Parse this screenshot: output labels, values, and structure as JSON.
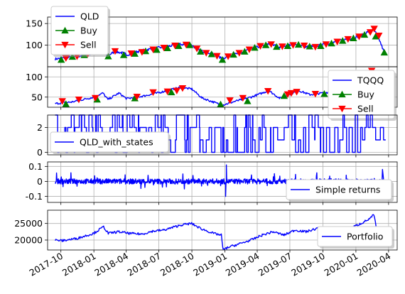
{
  "colors": {
    "line": "#0000ff",
    "buy": "#008000",
    "sell": "#ff0000",
    "grid": "#b0b0b0"
  },
  "chart_data": [
    {
      "type": "line",
      "ylim": [
        50,
        165
      ],
      "yticks": [
        100,
        150
      ],
      "legend": "top-left",
      "grid": true,
      "legend_labels": [
        "QLD",
        "Buy",
        "Sell"
      ],
      "series": [
        {
          "name": "QLD",
          "x": [
            "2017-09-15",
            "2017-10-15",
            "2017-11-15",
            "2017-12-15",
            "2018-01-15",
            "2018-02-08",
            "2018-03-01",
            "2018-03-20",
            "2018-04-05",
            "2018-05-01",
            "2018-06-01",
            "2018-07-01",
            "2018-08-01",
            "2018-08-30",
            "2018-09-30",
            "2018-10-25",
            "2018-11-20",
            "2018-12-24",
            "2019-01-15",
            "2019-02-15",
            "2019-03-15",
            "2019-04-15",
            "2019-05-03",
            "2019-06-03",
            "2019-07-01",
            "2019-08-01",
            "2019-08-15",
            "2019-09-15",
            "2019-10-15",
            "2019-11-15",
            "2019-12-15",
            "2020-01-15",
            "2020-02-19",
            "2020-03-05",
            "2020-03-20"
          ],
          "y": [
            68,
            71,
            74,
            78,
            88,
            76,
            85,
            82,
            78,
            85,
            90,
            94,
            98,
            102,
            100,
            87,
            82,
            69,
            76,
            82,
            92,
            98,
            103,
            96,
            101,
            100,
            96,
            98,
            103,
            110,
            115,
            122,
            138,
            115,
            83
          ]
        },
        {
          "name": "Buy",
          "x": [
            "2017-10-02",
            "2017-11-02",
            "2017-12-05",
            "2018-01-05",
            "2018-02-10",
            "2018-03-25",
            "2018-04-25",
            "2018-05-25",
            "2018-06-25",
            "2018-07-25",
            "2018-08-25",
            "2018-09-25",
            "2018-10-25",
            "2018-11-25",
            "2018-12-25",
            "2019-01-25",
            "2019-02-25",
            "2019-03-25",
            "2019-04-25",
            "2019-05-25",
            "2019-06-25",
            "2019-07-25",
            "2019-08-25",
            "2019-09-25",
            "2019-10-25",
            "2019-11-25",
            "2019-12-25",
            "2020-01-25",
            "2020-02-25",
            "2020-03-20"
          ],
          "y": [
            66,
            73,
            77,
            84,
            74,
            77,
            80,
            86,
            89,
            93,
            98,
            100,
            85,
            79,
            66,
            78,
            85,
            94,
            100,
            96,
            98,
            101,
            97,
            98,
            104,
            110,
            116,
            124,
            120,
            83
          ]
        },
        {
          "name": "Sell",
          "x": [
            "2017-10-15",
            "2017-11-15",
            "2017-12-15",
            "2018-01-20",
            "2018-03-01",
            "2018-04-15",
            "2018-05-15",
            "2018-06-15",
            "2018-07-15",
            "2018-08-15",
            "2018-09-15",
            "2018-10-15",
            "2018-11-10",
            "2018-12-10",
            "2019-01-10",
            "2019-02-10",
            "2019-03-10",
            "2019-04-10",
            "2019-05-10",
            "2019-06-10",
            "2019-07-10",
            "2019-08-10",
            "2019-09-10",
            "2019-10-10",
            "2019-11-10",
            "2019-12-10",
            "2020-01-10",
            "2020-02-10",
            "2020-02-21",
            "2020-03-05"
          ],
          "y": [
            70,
            74,
            80,
            88,
            86,
            81,
            84,
            90,
            94,
            99,
            101,
            92,
            82,
            75,
            74,
            82,
            90,
            98,
            102,
            97,
            100,
            99,
            96,
            102,
            108,
            114,
            120,
            130,
            138,
            122
          ]
        }
      ]
    },
    {
      "type": "line",
      "ylim": [
        25,
        125
      ],
      "yticks": [
        50,
        100
      ],
      "legend": "right",
      "grid": true,
      "legend_labels": [
        "TQQQ",
        "Buy",
        "Sell"
      ],
      "series": [
        {
          "name": "TQQQ",
          "x": [
            "2017-09-15",
            "2017-11-01",
            "2018-01-01",
            "2018-01-26",
            "2018-02-09",
            "2018-03-12",
            "2018-04-02",
            "2018-05-15",
            "2018-07-01",
            "2018-08-29",
            "2018-10-01",
            "2018-10-29",
            "2018-12-24",
            "2019-01-31",
            "2019-03-15",
            "2019-05-03",
            "2019-06-03",
            "2019-07-26",
            "2019-08-26",
            "2019-10-15",
            "2019-12-15",
            "2020-02-19",
            "2020-03-05",
            "2020-03-20"
          ],
          "y": [
            34,
            38,
            50,
            60,
            44,
            60,
            46,
            52,
            61,
            74,
            70,
            48,
            30,
            40,
            50,
            66,
            47,
            66,
            56,
            62,
            80,
            106,
            75,
            30
          ]
        },
        {
          "name": "Buy",
          "x": [
            "2017-10-15",
            "2018-01-10",
            "2018-04-25",
            "2018-08-05",
            "2018-12-20",
            "2019-03-05",
            "2019-06-15",
            "2019-10-05",
            "2020-01-15"
          ],
          "y": [
            33,
            44,
            47,
            62,
            32,
            40,
            53,
            58,
            80
          ]
        },
        {
          "name": "Sell",
          "x": [
            "2017-10-05",
            "2017-11-20",
            "2018-01-05",
            "2018-05-01",
            "2018-06-15",
            "2018-07-25",
            "2018-08-20",
            "2018-09-05",
            "2019-01-15",
            "2019-02-20",
            "2019-05-01",
            "2019-06-25",
            "2019-07-05",
            "2019-07-20",
            "2019-09-10",
            "2019-11-10",
            "2019-12-15",
            "2020-02-14"
          ],
          "y": [
            40,
            44,
            48,
            51,
            62,
            64,
            66,
            72,
            42,
            48,
            65,
            57,
            60,
            63,
            58,
            65,
            82,
            115
          ]
        }
      ]
    },
    {
      "type": "line",
      "ylim": [
        -0.2,
        3.0
      ],
      "yticks": [
        0,
        2
      ],
      "legend": "bottom-left",
      "grid": true,
      "series": [
        {
          "name": "QLD_with_states",
          "x_range": [
            "2017-09-15",
            "2020-03-20"
          ],
          "y_levels": [
            0,
            1,
            2,
            3
          ],
          "style": "rapid switching between discrete states"
        }
      ]
    },
    {
      "type": "line",
      "ylim": [
        -0.14,
        0.13
      ],
      "yticks": [
        -0.1,
        0.0,
        0.1
      ],
      "legend": "right",
      "grid": true,
      "series": [
        {
          "name": "Simple returns",
          "x_range": [
            "2017-09-15",
            "2020-03-20"
          ],
          "typical_range": [
            -0.07,
            0.07
          ],
          "min": -0.12,
          "max": 0.11
        }
      ]
    },
    {
      "type": "line",
      "ylim": [
        17000,
        29000
      ],
      "yticks": [
        20000,
        25000
      ],
      "legend": "right",
      "grid": true,
      "xticks": [
        "2017-10",
        "2018-01",
        "2018-04",
        "2018-07",
        "2018-10",
        "2019-01",
        "2019-04",
        "2019-07",
        "2019-10",
        "2020-01",
        "2020-04"
      ],
      "series": [
        {
          "name": "Portfolio",
          "x": [
            "2017-09-15",
            "2017-10-05",
            "2017-11-15",
            "2017-12-31",
            "2018-01-28",
            "2018-02-10",
            "2018-03-10",
            "2018-04-10",
            "2018-05-15",
            "2018-06-15",
            "2018-07-15",
            "2018-08-30",
            "2018-09-30",
            "2018-10-25",
            "2018-11-30",
            "2018-12-22",
            "2018-12-27",
            "2019-01-10",
            "2019-02-15",
            "2019-03-15",
            "2019-04-15",
            "2019-05-15",
            "2019-06-15",
            "2019-07-15",
            "2019-08-15",
            "2019-09-15",
            "2019-10-15",
            "2019-11-15",
            "2019-12-15",
            "2020-01-15",
            "2020-02-10",
            "2020-02-20",
            "2020-02-28",
            "2020-03-20"
          ],
          "y": [
            20000,
            19800,
            20500,
            22000,
            24000,
            22000,
            22500,
            22000,
            21800,
            22700,
            23000,
            24500,
            25000,
            23500,
            22000,
            21500,
            17000,
            17800,
            19000,
            20000,
            21500,
            22500,
            21500,
            23000,
            22500,
            23500,
            23800,
            23000,
            23500,
            25000,
            26500,
            27700,
            23000,
            21500
          ]
        }
      ]
    }
  ]
}
